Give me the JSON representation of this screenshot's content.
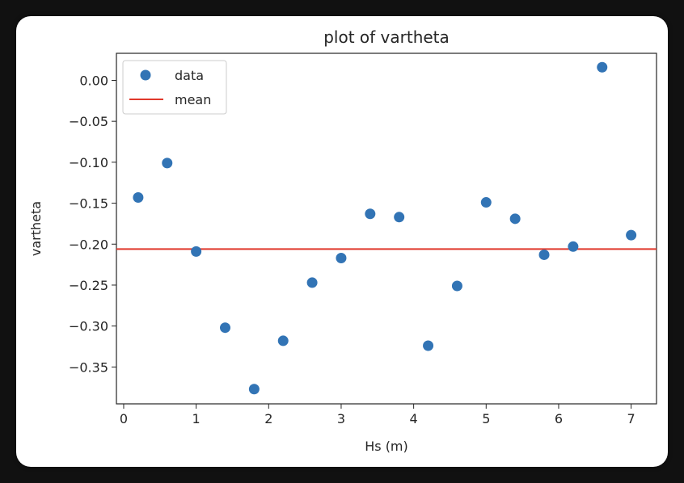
{
  "chart_data": {
    "type": "scatter",
    "title": "plot of vartheta",
    "xlabel": "Hs (m)",
    "ylabel": "vartheta",
    "xlim": [
      -0.1,
      7.35
    ],
    "ylim": [
      -0.395,
      0.033
    ],
    "x_ticks": [
      0,
      1,
      2,
      3,
      4,
      5,
      6,
      7
    ],
    "y_ticks": [
      0.0,
      -0.05,
      -0.1,
      -0.15,
      -0.2,
      -0.25,
      -0.3,
      -0.35
    ],
    "y_tick_labels": [
      "0.00",
      "−0.05",
      "−0.10",
      "−0.15",
      "−0.20",
      "−0.25",
      "−0.30",
      "−0.35"
    ],
    "x_tick_labels": [
      "0",
      "1",
      "2",
      "3",
      "4",
      "5",
      "6",
      "7"
    ],
    "series": [
      {
        "name": "data",
        "kind": "scatter",
        "color": "#3274b5",
        "x": [
          0.2,
          0.6,
          1.0,
          1.4,
          1.8,
          2.2,
          2.6,
          3.0,
          3.4,
          3.8,
          4.2,
          4.6,
          5.0,
          5.4,
          5.8,
          6.2,
          6.6,
          7.0
        ],
        "y": [
          -0.143,
          -0.101,
          -0.209,
          -0.302,
          -0.377,
          -0.318,
          -0.247,
          -0.217,
          -0.163,
          -0.167,
          -0.324,
          -0.251,
          -0.149,
          -0.169,
          -0.213,
          -0.203,
          0.016,
          -0.189
        ]
      },
      {
        "name": "mean",
        "kind": "hline",
        "color": "#e0382b",
        "y": -0.206
      }
    ],
    "legend_position": "top-left",
    "grid": false
  }
}
